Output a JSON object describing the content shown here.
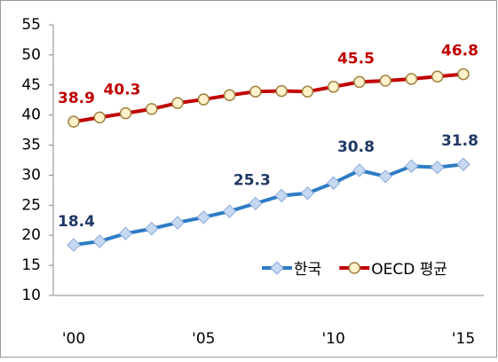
{
  "chart_data": {
    "type": "line",
    "categories": [
      "'00",
      null,
      null,
      null,
      null,
      "'05",
      null,
      null,
      null,
      null,
      "'10",
      null,
      null,
      null,
      null,
      "'15"
    ],
    "series": [
      {
        "name": "한국",
        "color": "#2e7cc4",
        "marker": "diamond",
        "label_color": "#1f3864",
        "values": [
          18.4,
          19.0,
          20.3,
          21.1,
          22.1,
          23.0,
          24.0,
          25.3,
          26.6,
          27.0,
          28.7,
          30.8,
          29.8,
          31.5,
          31.3,
          31.8
        ],
        "value_labels": [
          "18.4",
          null,
          null,
          null,
          null,
          null,
          null,
          "25.3",
          null,
          null,
          null,
          "30.8",
          null,
          null,
          null,
          "31.8"
        ]
      },
      {
        "name": "OECD 평균",
        "color": "#c00000",
        "marker": "circle",
        "label_color": "#c00000",
        "values": [
          38.9,
          39.6,
          40.3,
          41.0,
          42.0,
          42.6,
          43.3,
          43.9,
          44.0,
          43.9,
          44.7,
          45.5,
          45.7,
          46.0,
          46.4,
          46.8
        ],
        "value_labels": [
          "38.9",
          null,
          "40.3",
          null,
          null,
          null,
          null,
          null,
          null,
          null,
          null,
          "45.5",
          null,
          null,
          null,
          "46.8"
        ]
      }
    ],
    "ylim": [
      10,
      55
    ],
    "yticks": [
      10,
      15,
      20,
      25,
      30,
      35,
      40,
      45,
      50,
      55
    ],
    "grid": false,
    "legend": "lower right"
  }
}
